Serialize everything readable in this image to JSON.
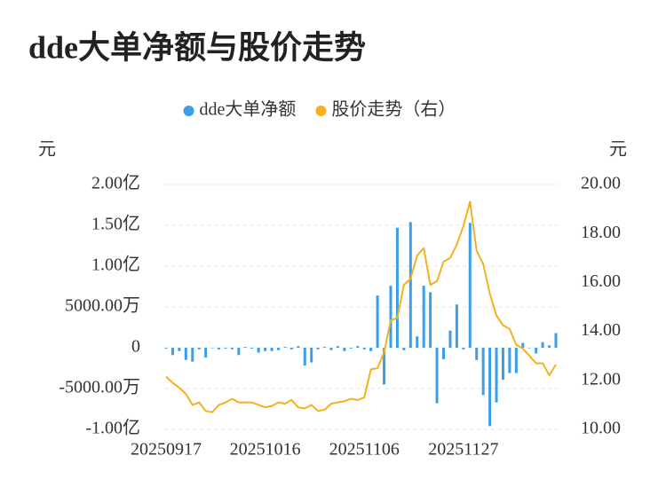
{
  "chart_data": {
    "type": "bar",
    "title": "dde大单净额与股价走势",
    "y_label": "元",
    "y2_label": "元",
    "categories": [
      "20250917",
      null,
      null,
      null,
      null,
      null,
      null,
      null,
      null,
      null,
      null,
      null,
      null,
      null,
      null,
      "20251016",
      null,
      null,
      null,
      null,
      null,
      null,
      null,
      null,
      null,
      null,
      null,
      null,
      null,
      null,
      "20251106",
      null,
      null,
      null,
      null,
      null,
      null,
      null,
      null,
      null,
      null,
      null,
      null,
      null,
      null,
      "20251127",
      null,
      null,
      null,
      null,
      null,
      null,
      null,
      null,
      null,
      null,
      null,
      null,
      null,
      null
    ],
    "series": [
      {
        "name": "dde大单净额",
        "type": "bar",
        "color": "#3a9ee8",
        "values": [
          -0.01,
          -0.09,
          -0.04,
          -0.15,
          -0.17,
          -0.02,
          -0.12,
          0.0,
          -0.02,
          -0.01,
          -0.02,
          -0.09,
          0.01,
          -0.01,
          -0.06,
          -0.04,
          -0.04,
          -0.03,
          0.01,
          -0.02,
          0.02,
          -0.22,
          -0.18,
          -0.02,
          0.01,
          -0.03,
          0.02,
          -0.04,
          -0.01,
          0.02,
          -0.02,
          -0.04,
          0.64,
          -0.45,
          0.76,
          1.47,
          -0.03,
          1.54,
          0.14,
          0.76,
          0.68,
          -0.68,
          -0.14,
          0.21,
          0.53,
          -0.02,
          1.53,
          -0.15,
          -0.58,
          -0.96,
          -0.67,
          -0.39,
          -0.31,
          -0.31,
          0.06,
          0.0,
          -0.07,
          0.07,
          0.03,
          0.18
        ]
      },
      {
        "name": "股价走势（右）",
        "type": "line",
        "axis": "y2",
        "color": "#f5b021",
        "values": [
          12.15,
          11.9,
          11.7,
          11.45,
          11.0,
          11.1,
          10.75,
          10.7,
          11.0,
          11.1,
          11.25,
          11.1,
          11.1,
          11.1,
          11.0,
          10.9,
          10.95,
          11.1,
          11.05,
          11.2,
          10.9,
          10.85,
          11.0,
          10.75,
          10.8,
          11.05,
          11.1,
          11.15,
          11.25,
          11.2,
          11.3,
          12.45,
          12.5,
          13.15,
          14.45,
          14.55,
          15.9,
          16.15,
          17.1,
          17.4,
          15.9,
          16.05,
          16.85,
          17.0,
          17.55,
          18.3,
          19.3,
          17.3,
          16.75,
          15.55,
          14.65,
          14.25,
          14.1,
          13.45,
          13.3,
          13.0,
          12.7,
          12.7,
          12.2,
          12.65
        ]
      }
    ],
    "ylim": [
      -1,
      2
    ],
    "yticks": [
      {
        "value": -1,
        "label": "-1.00亿"
      },
      {
        "value": -0.5,
        "label": "-5000.00万"
      },
      0,
      {
        "value": 0.5,
        "label": "5000.00万"
      },
      {
        "value": 1,
        "label": "1.00亿"
      },
      {
        "value": 1.5,
        "label": "1.50亿"
      },
      {
        "value": 2,
        "label": "2.00亿"
      }
    ],
    "y2lim": [
      10,
      20
    ],
    "y2ticks": [
      {
        "value": 10,
        "label": "10.00"
      },
      {
        "value": 12,
        "label": "12.00"
      },
      {
        "value": 14,
        "label": "14.00"
      },
      {
        "value": 16,
        "label": "16.00"
      },
      {
        "value": 18,
        "label": "18.00"
      },
      {
        "value": 20,
        "label": "20.00"
      }
    ],
    "grid": true,
    "legend": "top"
  }
}
